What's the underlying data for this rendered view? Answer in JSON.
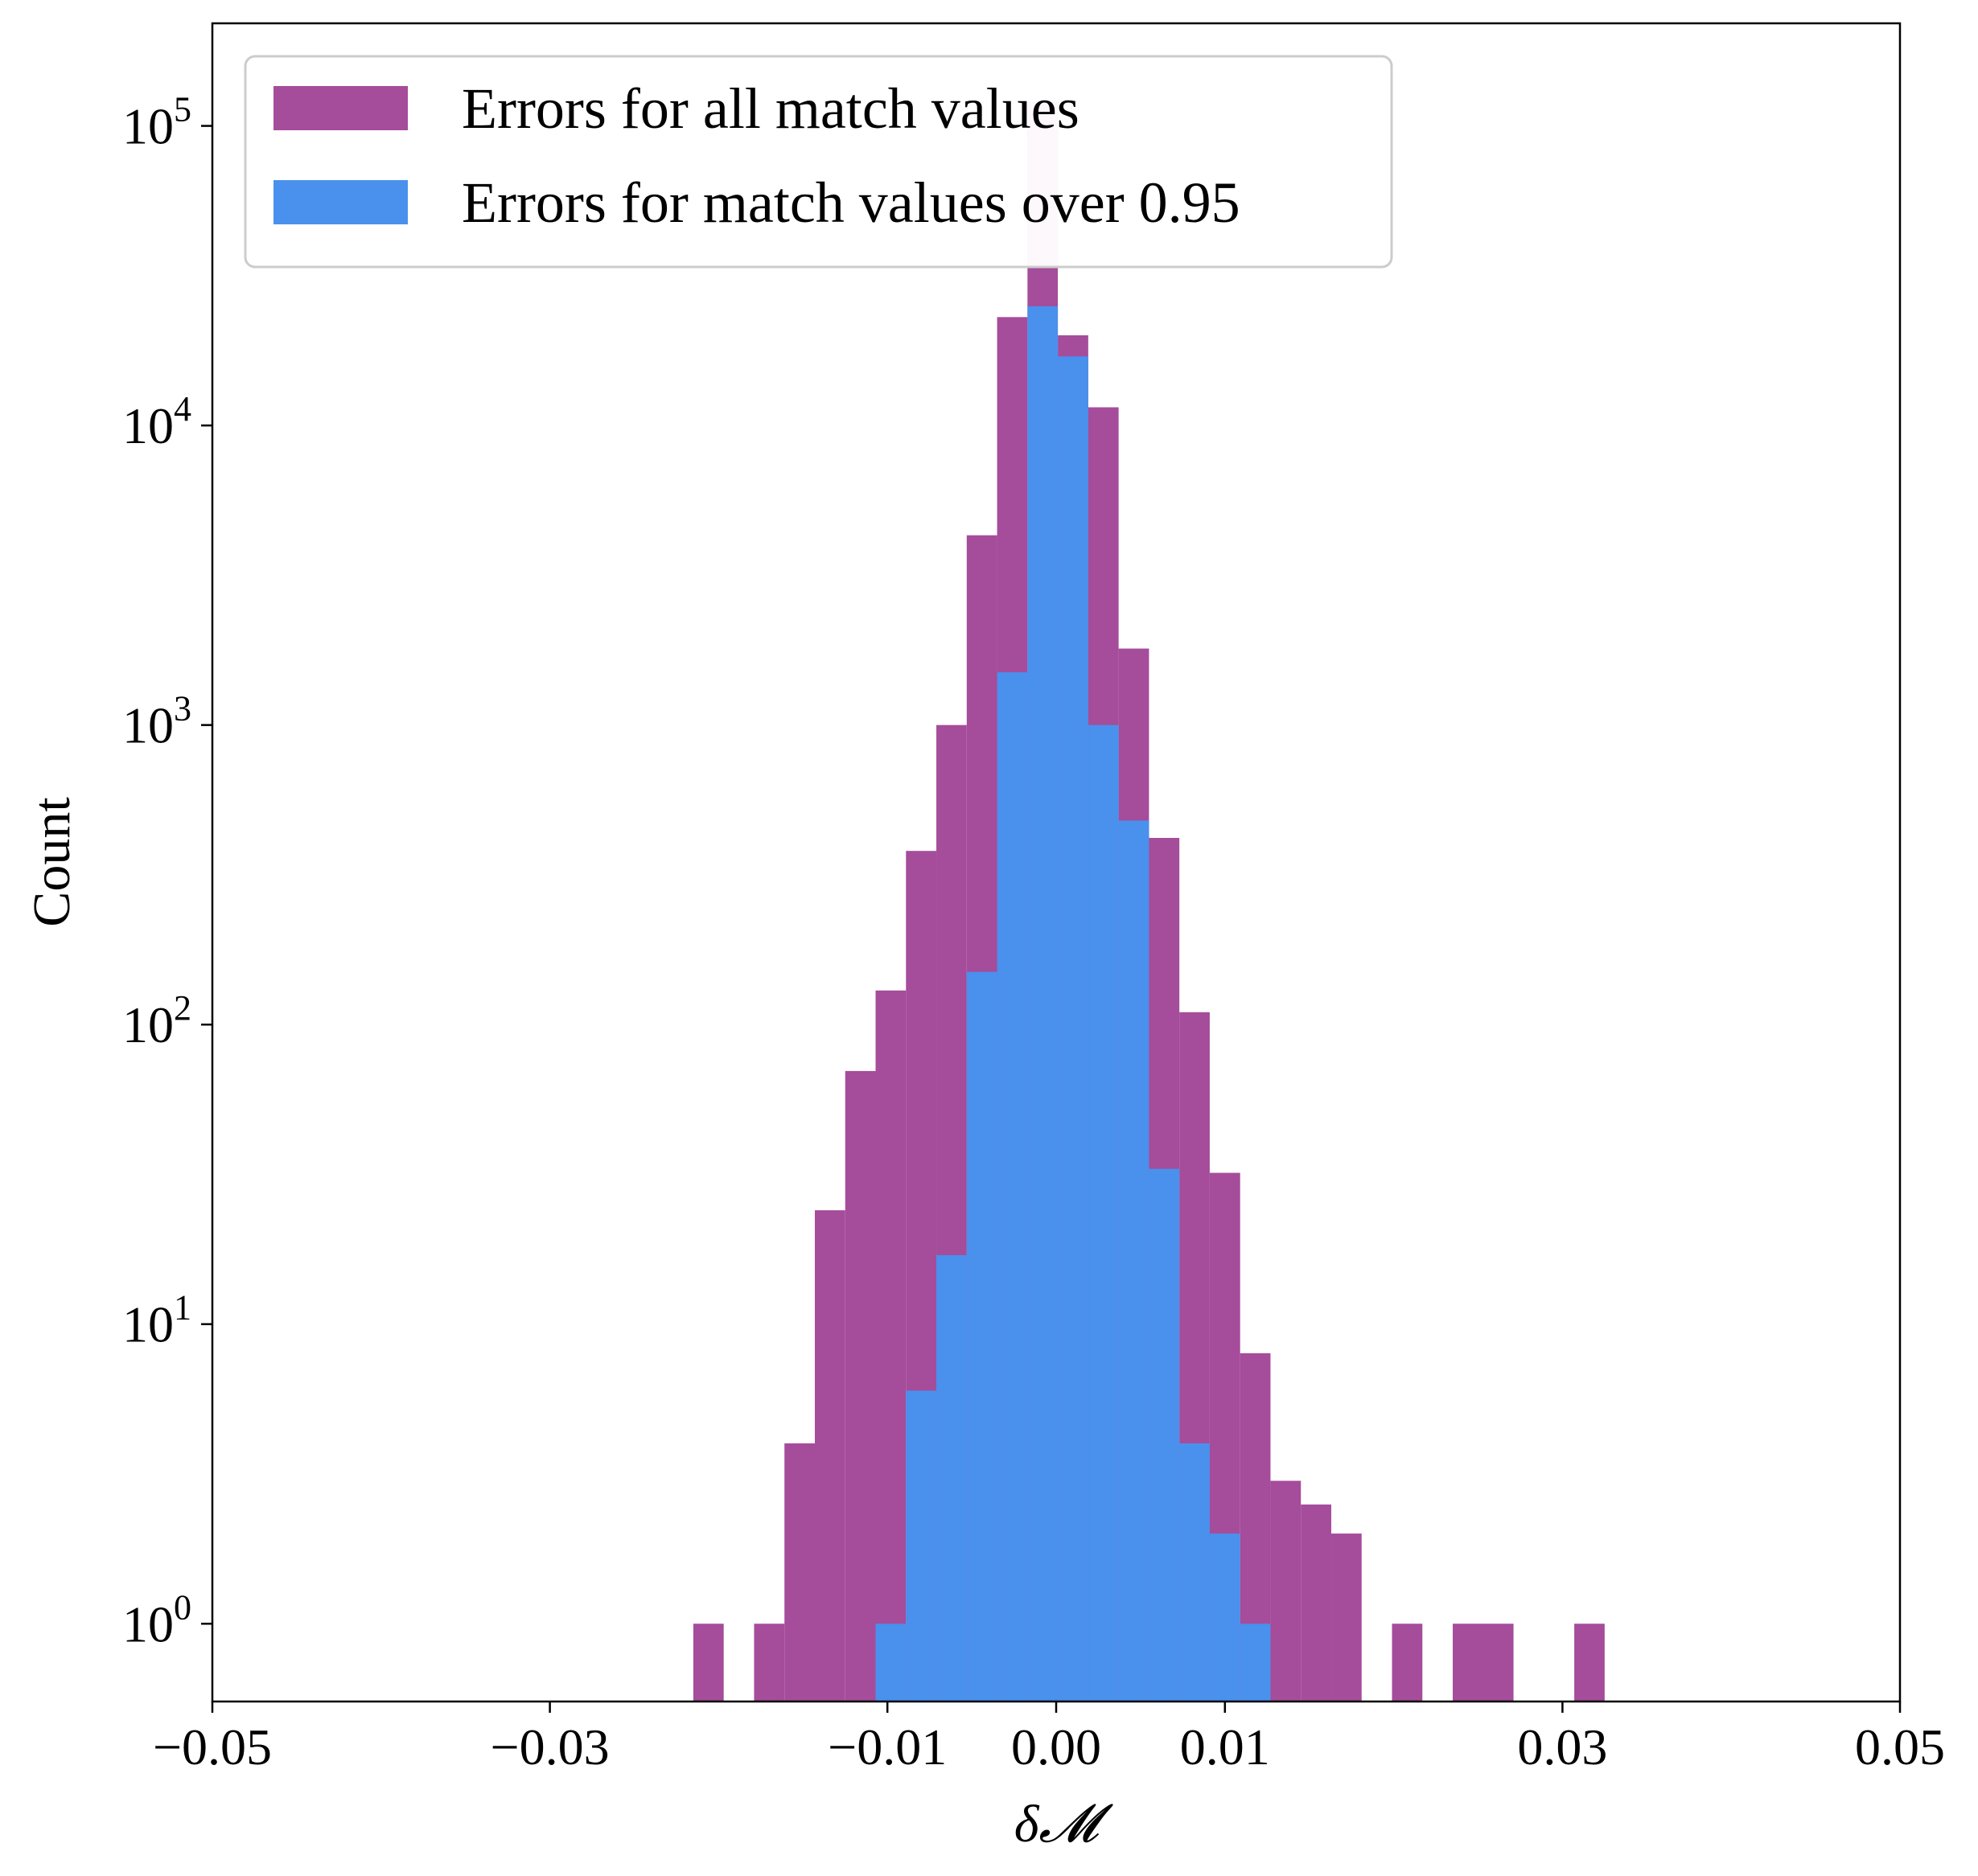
{
  "chart_data": {
    "type": "bar",
    "title": "",
    "xlabel": "δ𝓜",
    "ylabel": "Count",
    "xlim": [
      -0.05,
      0.05
    ],
    "ylog": true,
    "ylim": [
      0.55,
      220000
    ],
    "x_ticks": [
      {
        "value": -0.05,
        "label": "−0.05"
      },
      {
        "value": -0.03,
        "label": "−0.03"
      },
      {
        "value": -0.01,
        "label": "−0.01"
      },
      {
        "value": 0.0,
        "label": "0.00"
      },
      {
        "value": 0.01,
        "label": "0.01"
      },
      {
        "value": 0.03,
        "label": "0.03"
      },
      {
        "value": 0.05,
        "label": "0.05"
      }
    ],
    "y_ticks": [
      {
        "value": 1,
        "base": "10",
        "exp": "0"
      },
      {
        "value": 10,
        "base": "10",
        "exp": "1"
      },
      {
        "value": 100,
        "base": "10",
        "exp": "2"
      },
      {
        "value": 1000,
        "base": "10",
        "exp": "3"
      },
      {
        "value": 10000,
        "base": "10",
        "exp": "4"
      },
      {
        "value": 100000,
        "base": "10",
        "exp": "5"
      }
    ],
    "grid": false,
    "legend_position": "top-left",
    "series": [
      {
        "name": "Errors for all match values",
        "color": "#a54c9b",
        "bins": [
          {
            "x0": -0.0215,
            "x1": -0.0197,
            "count": 1
          },
          {
            "x0": -0.0179,
            "x1": -0.0161,
            "count": 1
          },
          {
            "x0": -0.0161,
            "x1": -0.0143,
            "count": 4
          },
          {
            "x0": -0.0143,
            "x1": -0.0125,
            "count": 24
          },
          {
            "x0": -0.0125,
            "x1": -0.0107,
            "count": 70
          },
          {
            "x0": -0.0107,
            "x1": -0.0089,
            "count": 130
          },
          {
            "x0": -0.0089,
            "x1": -0.0071,
            "count": 380
          },
          {
            "x0": -0.0071,
            "x1": -0.0053,
            "count": 1000
          },
          {
            "x0": -0.0053,
            "x1": -0.0035,
            "count": 4300
          },
          {
            "x0": -0.0035,
            "x1": -0.0017,
            "count": 23000
          },
          {
            "x0": -0.0017,
            "x1": 0.0001,
            "count": 120000
          },
          {
            "x0": 0.0001,
            "x1": 0.0019,
            "count": 20000
          },
          {
            "x0": 0.0019,
            "x1": 0.0037,
            "count": 11500
          },
          {
            "x0": 0.0037,
            "x1": 0.0055,
            "count": 1800
          },
          {
            "x0": 0.0055,
            "x1": 0.0073,
            "count": 420
          },
          {
            "x0": 0.0073,
            "x1": 0.0091,
            "count": 110
          },
          {
            "x0": 0.0091,
            "x1": 0.0109,
            "count": 32
          },
          {
            "x0": 0.0109,
            "x1": 0.0127,
            "count": 8
          },
          {
            "x0": 0.0127,
            "x1": 0.0145,
            "count": 3
          },
          {
            "x0": 0.0145,
            "x1": 0.0163,
            "count": 2.5
          },
          {
            "x0": 0.0163,
            "x1": 0.0181,
            "count": 2
          },
          {
            "x0": 0.0199,
            "x1": 0.0217,
            "count": 1
          },
          {
            "x0": 0.0235,
            "x1": 0.0271,
            "count": 1
          },
          {
            "x0": 0.0307,
            "x1": 0.0325,
            "count": 1
          }
        ]
      },
      {
        "name": "Errors for match values over 0.95",
        "color": "#4a90ed",
        "bins": [
          {
            "x0": -0.0107,
            "x1": -0.0089,
            "count": 1
          },
          {
            "x0": -0.0089,
            "x1": -0.0071,
            "count": 6
          },
          {
            "x0": -0.0071,
            "x1": -0.0053,
            "count": 17
          },
          {
            "x0": -0.0053,
            "x1": -0.0035,
            "count": 150
          },
          {
            "x0": -0.0035,
            "x1": -0.0017,
            "count": 1500
          },
          {
            "x0": -0.0017,
            "x1": 0.0001,
            "count": 25000
          },
          {
            "x0": 0.0001,
            "x1": 0.0019,
            "count": 17000
          },
          {
            "x0": 0.0019,
            "x1": 0.0037,
            "count": 1000
          },
          {
            "x0": 0.0037,
            "x1": 0.0055,
            "count": 480
          },
          {
            "x0": 0.0055,
            "x1": 0.0073,
            "count": 33
          },
          {
            "x0": 0.0073,
            "x1": 0.0091,
            "count": 4
          },
          {
            "x0": 0.0091,
            "x1": 0.0109,
            "count": 2
          },
          {
            "x0": 0.0109,
            "x1": 0.0127,
            "count": 1
          }
        ]
      }
    ],
    "overlay": {
      "color": "#eed9ec",
      "description_hidden": true
    }
  }
}
